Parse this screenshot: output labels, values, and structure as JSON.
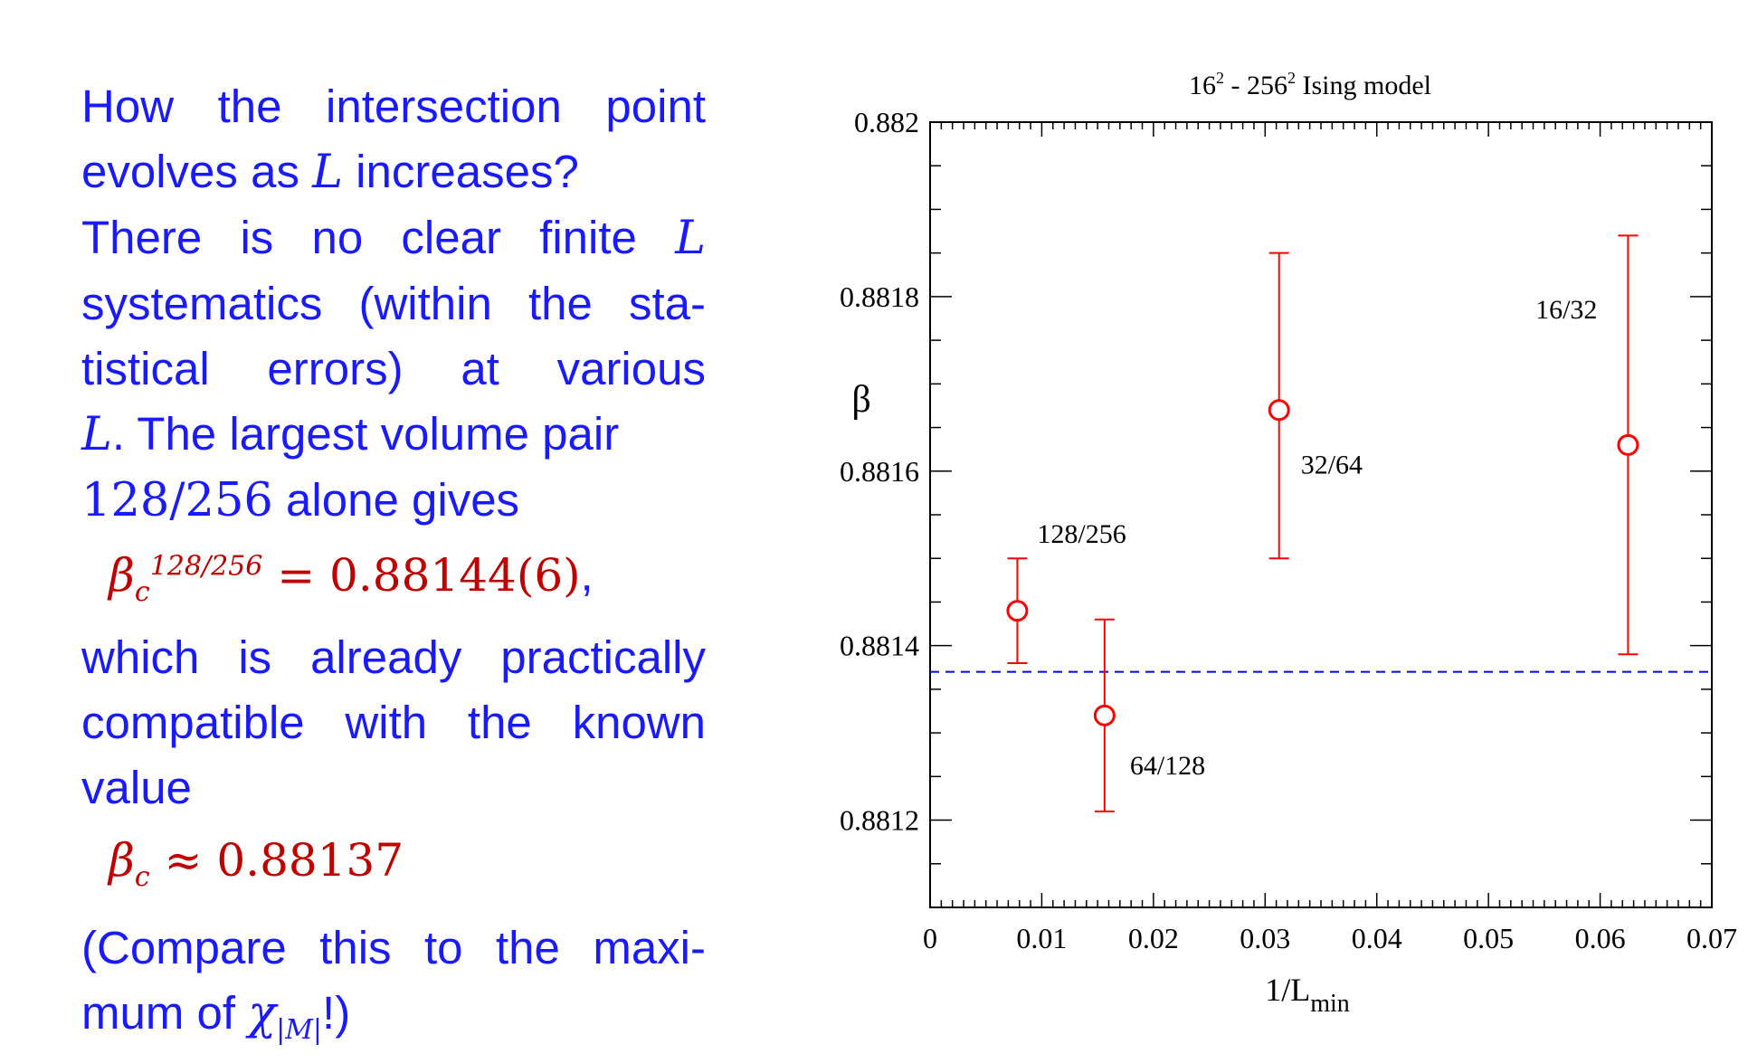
{
  "text": {
    "p1": [
      "How the intersection point",
      "evolves as ",
      "L",
      " increases?",
      "There is no clear finite ",
      "L",
      "systematics (within the sta-",
      "tistical errors) at various",
      "L",
      ". The largest volume pair",
      "128/256",
      " alone gives"
    ],
    "eq1": {
      "beta": "β",
      "sub": "c",
      "sup": "128/256",
      "rhs": "= 0.88144(6)",
      "tail": ","
    },
    "p2": [
      "which is already practically",
      "compatible with the known",
      "value"
    ],
    "eq2": {
      "beta": "β",
      "sub": "c",
      "rhs": " ≈ 0.88137"
    },
    "p3": [
      "(Compare this to the maxi-",
      "mum of ",
      "χ",
      "|M|",
      "!)"
    ]
  },
  "colors": {
    "text": "#1a1aff",
    "math": "#c00000",
    "points": "#ff0000",
    "reference": "#0000ff"
  },
  "chart_data": {
    "type": "scatter",
    "title": "16² - 256² Ising model",
    "xlabel": "1/L",
    "xlabel_sub": "min",
    "ylabel": "β",
    "xlim": [
      0,
      0.07
    ],
    "ylim": [
      0.8811,
      0.882
    ],
    "x_ticks": [
      0,
      0.01,
      0.02,
      0.03,
      0.04,
      0.05,
      0.06,
      0.07
    ],
    "x_tick_labels": [
      "0",
      "0.01",
      "0.02",
      "0.03",
      "0.04",
      "0.05",
      "0.06",
      "0.07"
    ],
    "y_ticks": [
      0.8812,
      0.8814,
      0.8816,
      0.8818,
      0.882
    ],
    "y_tick_labels": [
      "0.8812",
      "0.8814",
      "0.8816",
      "0.8818",
      "0.882"
    ],
    "points": [
      {
        "label": "128/256",
        "x": 0.0078125,
        "y": 0.88144,
        "err_low": 0.88138,
        "err_high": 0.8815
      },
      {
        "label": "64/128",
        "x": 0.015625,
        "y": 0.88132,
        "err_low": 0.88121,
        "err_high": 0.88143
      },
      {
        "label": "32/64",
        "x": 0.03125,
        "y": 0.88167,
        "err_low": 0.8815,
        "err_high": 0.88185
      },
      {
        "label": "16/32",
        "x": 0.0625,
        "y": 0.88163,
        "err_low": 0.88139,
        "err_high": 0.88187
      }
    ],
    "reference_line": {
      "y": 0.88137,
      "style": "dashed"
    }
  }
}
